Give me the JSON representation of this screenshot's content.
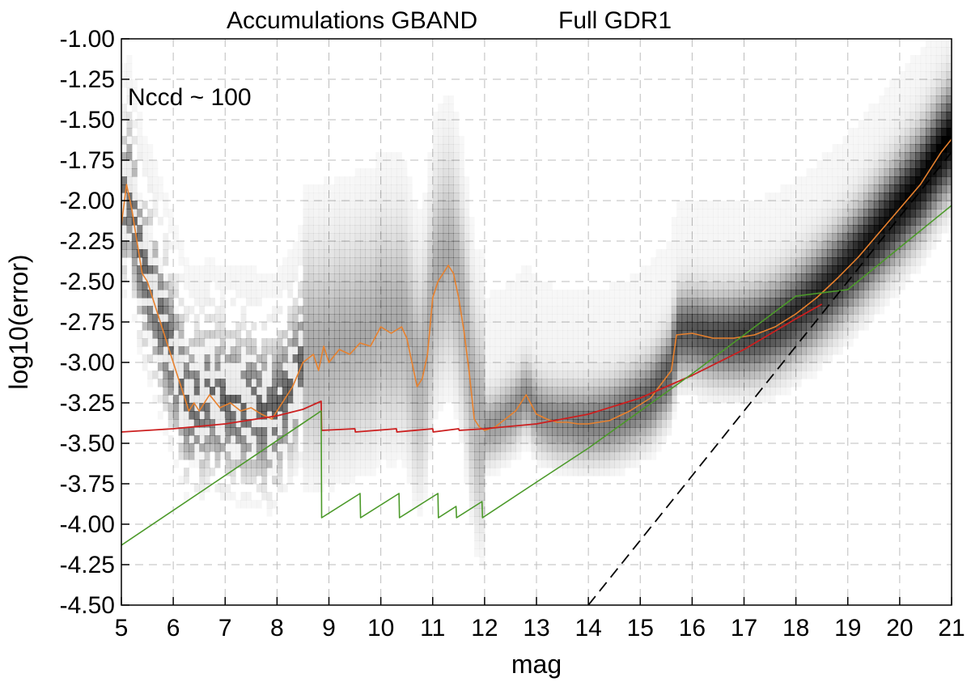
{
  "chart_data": {
    "type": "scatter",
    "title_left": "Accumulations GBAND",
    "title_right": "Full GDR1",
    "xlabel": "mag",
    "ylabel": "log10(error)",
    "annotation": "Nccd ~ 100",
    "xlim": [
      5,
      21
    ],
    "ylim": [
      -4.5,
      -1.0
    ],
    "x_ticks": [
      "5",
      "6",
      "7",
      "8",
      "9",
      "10",
      "11",
      "12",
      "13",
      "14",
      "15",
      "16",
      "17",
      "18",
      "19",
      "20",
      "21"
    ],
    "y_ticks": [
      "-1.00",
      "-1.25",
      "-1.50",
      "-1.75",
      "-2.00",
      "-2.25",
      "-2.50",
      "-2.75",
      "-3.00",
      "-3.25",
      "-3.50",
      "-3.75",
      "-4.00",
      "-4.25",
      "-4.50"
    ],
    "grid": true,
    "colors": {
      "density": "#000000",
      "median": "#e8812d",
      "model_red": "#cc1f1f",
      "model_green": "#4c9a2a",
      "dashed": "#000000"
    },
    "series": [
      {
        "style": "median-orange",
        "x": [
          5.0,
          5.1,
          5.2,
          5.3,
          5.4,
          5.5,
          5.6,
          5.7,
          5.8,
          5.9,
          6.0,
          6.1,
          6.2,
          6.3,
          6.4,
          6.5,
          6.7,
          6.9,
          7.1,
          7.3,
          7.5,
          7.7,
          7.9,
          8.1,
          8.3,
          8.5,
          8.7,
          8.8,
          8.9,
          9.0,
          9.2,
          9.4,
          9.6,
          9.8,
          10.0,
          10.2,
          10.4,
          10.5,
          10.6,
          10.7,
          10.8,
          10.9,
          11.0,
          11.1,
          11.2,
          11.3,
          11.4,
          11.5,
          11.6,
          11.7,
          11.8,
          11.9,
          12.0,
          12.2,
          12.4,
          12.6,
          12.8,
          13.0,
          13.2,
          13.4,
          13.6,
          13.8,
          14.0,
          14.4,
          14.8,
          15.2,
          15.6,
          15.7,
          16.0,
          16.4,
          16.8,
          17.2,
          17.6,
          18.0,
          18.4,
          18.8,
          19.2,
          19.6,
          20.0,
          20.4,
          20.8,
          21.0
        ],
        "y": [
          -2.15,
          -1.9,
          -2.05,
          -2.25,
          -2.45,
          -2.5,
          -2.6,
          -2.7,
          -2.8,
          -2.9,
          -3.0,
          -3.1,
          -3.2,
          -3.3,
          -3.25,
          -3.3,
          -3.2,
          -3.28,
          -3.25,
          -3.3,
          -3.28,
          -3.32,
          -3.35,
          -3.25,
          -3.15,
          -3.0,
          -2.95,
          -3.05,
          -2.9,
          -3.0,
          -2.92,
          -2.95,
          -2.88,
          -2.9,
          -2.78,
          -2.82,
          -2.78,
          -2.85,
          -3.0,
          -3.15,
          -3.1,
          -2.95,
          -2.6,
          -2.5,
          -2.45,
          -2.4,
          -2.45,
          -2.6,
          -2.8,
          -3.05,
          -3.35,
          -3.4,
          -3.42,
          -3.4,
          -3.35,
          -3.3,
          -3.2,
          -3.32,
          -3.35,
          -3.37,
          -3.37,
          -3.38,
          -3.38,
          -3.36,
          -3.3,
          -3.22,
          -3.05,
          -2.83,
          -2.82,
          -2.85,
          -2.85,
          -2.83,
          -2.78,
          -2.7,
          -2.6,
          -2.48,
          -2.35,
          -2.2,
          -2.05,
          -1.9,
          -1.7,
          -1.62
        ]
      },
      {
        "style": "model-red",
        "x": [
          5.0,
          6.0,
          7.0,
          8.0,
          8.5,
          8.85,
          8.86,
          9.5,
          9.51,
          10.3,
          10.31,
          11.0,
          11.01,
          11.5,
          11.51,
          12.0,
          13.0,
          14.0,
          15.0,
          16.0,
          17.0,
          18.0,
          18.5
        ],
        "y": [
          -3.43,
          -3.41,
          -3.38,
          -3.33,
          -3.29,
          -3.24,
          -3.42,
          -3.41,
          -3.43,
          -3.41,
          -3.43,
          -3.41,
          -3.43,
          -3.41,
          -3.42,
          -3.41,
          -3.38,
          -3.32,
          -3.22,
          -3.08,
          -2.92,
          -2.73,
          -2.64
        ]
      },
      {
        "style": "model-green",
        "x": [
          5.0,
          8.85,
          8.86,
          9.6,
          9.61,
          10.35,
          10.36,
          11.1,
          11.11,
          11.45,
          11.46,
          11.95,
          11.96,
          13.0,
          14.0,
          15.0,
          16.0,
          17.0,
          18.0,
          19.0,
          20.0,
          21.0
        ],
        "y": [
          -4.13,
          -3.3,
          -3.96,
          -3.81,
          -3.96,
          -3.81,
          -3.96,
          -3.81,
          -3.96,
          -3.89,
          -3.96,
          -3.86,
          -3.96,
          -3.74,
          -3.53,
          -3.3,
          -3.07,
          -2.83,
          -2.59,
          -2.55,
          -2.29,
          -2.03
        ]
      },
      {
        "style": "dashed-black",
        "x": [
          14.0,
          21.0
        ],
        "y": [
          -4.5,
          -1.7
        ]
      }
    ]
  }
}
